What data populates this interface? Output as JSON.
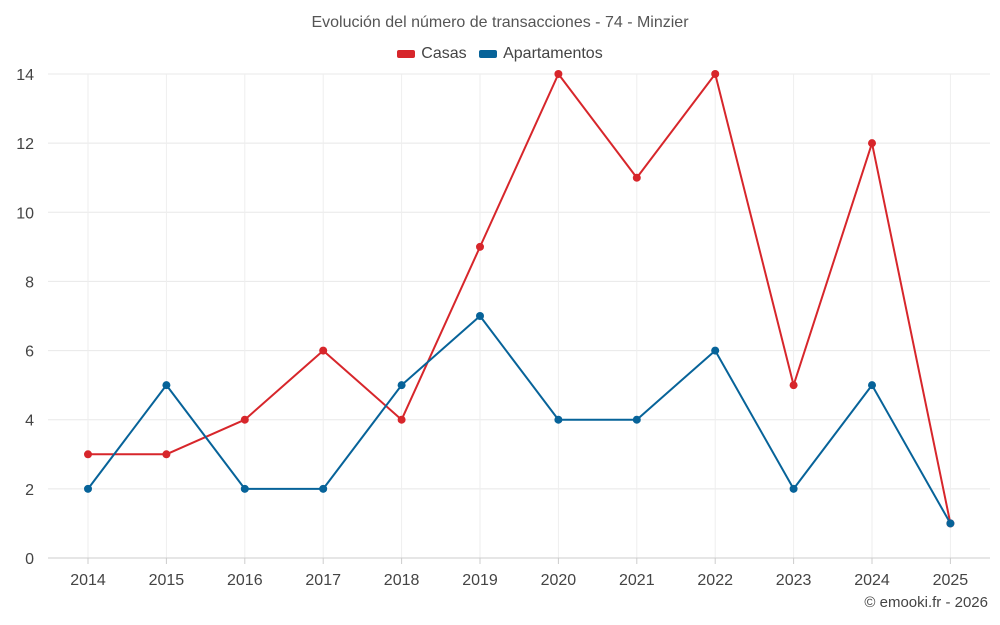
{
  "credit": "© emooki.fr - 2026",
  "chart_data": {
    "type": "line",
    "title": "Evolución del número de transacciones - 74 - Minzier",
    "categories": [
      "2014",
      "2015",
      "2016",
      "2017",
      "2018",
      "2019",
      "2020",
      "2021",
      "2022",
      "2023",
      "2024",
      "2025"
    ],
    "series": [
      {
        "name": "Casas",
        "color": "#d7262b",
        "values": [
          3,
          3,
          4,
          6,
          4,
          9,
          14,
          11,
          14,
          5,
          12,
          1
        ]
      },
      {
        "name": "Apartamentos",
        "color": "#076399",
        "values": [
          2,
          5,
          2,
          2,
          5,
          7,
          4,
          4,
          6,
          2,
          5,
          1
        ]
      }
    ],
    "ylim": [
      0,
      14
    ],
    "yticks": [
      0,
      2,
      4,
      6,
      8,
      10,
      12,
      14
    ],
    "grid": true,
    "legend": "top-center"
  }
}
